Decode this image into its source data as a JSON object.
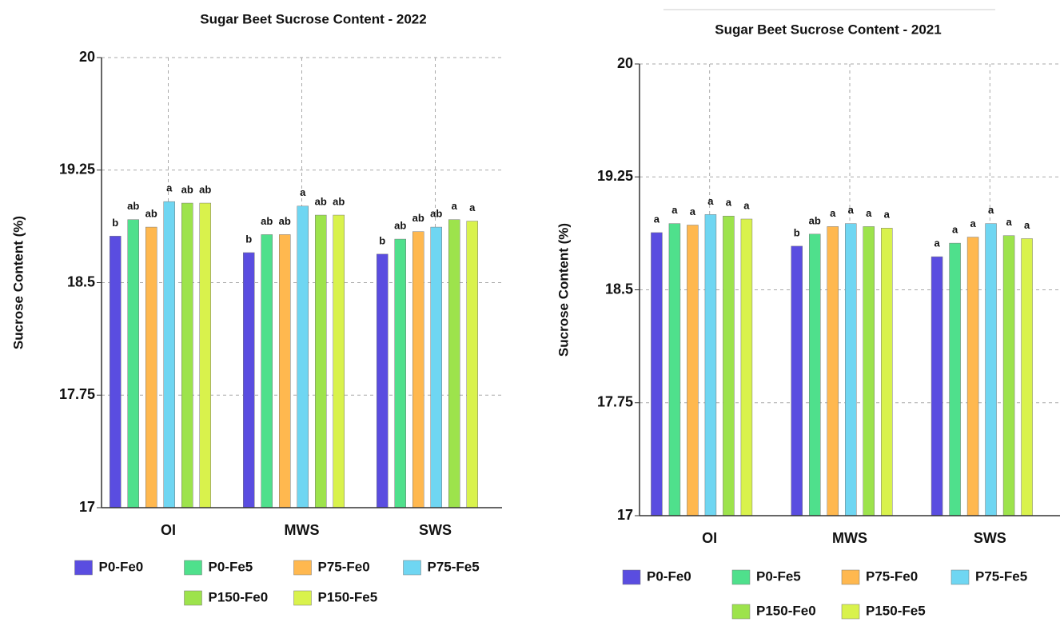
{
  "chart_data": [
    {
      "type": "bar",
      "title": "Sugar Beet Sucrose Content - 2022",
      "y_label": "Sucrose Content (%)",
      "categories": [
        "OI",
        "MWS",
        "SWS"
      ],
      "ylim": [
        17,
        20
      ],
      "yticks": [
        17,
        17.75,
        18.5,
        19.25,
        20
      ],
      "grid": true,
      "legend": "bottom",
      "series": [
        {
          "name": "P0-Fe0",
          "color": "#5a4de0",
          "values": [
            18.81,
            18.7,
            18.69
          ],
          "letters": [
            "b",
            "b",
            "b"
          ]
        },
        {
          "name": "P0-Fe5",
          "color": "#4fe08c",
          "values": [
            18.92,
            18.82,
            18.79
          ],
          "letters": [
            "ab",
            "ab",
            "ab"
          ]
        },
        {
          "name": "P75-Fe0",
          "color": "#ffb84f",
          "values": [
            18.87,
            18.82,
            18.84
          ],
          "letters": [
            "ab",
            "ab",
            "ab"
          ]
        },
        {
          "name": "P75-Fe5",
          "color": "#6fd6f2",
          "values": [
            19.04,
            19.01,
            18.87
          ],
          "letters": [
            "a",
            "a",
            "ab"
          ]
        },
        {
          "name": "P150-Fe0",
          "color": "#9de34c",
          "values": [
            19.03,
            18.95,
            18.92
          ],
          "letters": [
            "ab",
            "ab",
            "a"
          ]
        },
        {
          "name": "P150-Fe5",
          "color": "#d9f24c",
          "values": [
            19.03,
            18.95,
            18.91
          ],
          "letters": [
            "ab",
            "ab",
            "a"
          ]
        }
      ]
    },
    {
      "type": "bar",
      "title": "Sugar Beet Sucrose Content - 2021",
      "y_label": "Sucrose Content (%)",
      "categories": [
        "OI",
        "MWS",
        "SWS"
      ],
      "ylim": [
        17,
        20
      ],
      "yticks": [
        17,
        17.75,
        18.5,
        19.25,
        20
      ],
      "grid": true,
      "legend": "bottom",
      "series": [
        {
          "name": "P0-Fe0",
          "color": "#5a4de0",
          "values": [
            18.88,
            18.79,
            18.72
          ],
          "letters": [
            "a",
            "b",
            "a"
          ]
        },
        {
          "name": "P0-Fe5",
          "color": "#4fe08c",
          "values": [
            18.94,
            18.87,
            18.81
          ],
          "letters": [
            "a",
            "ab",
            "a"
          ]
        },
        {
          "name": "P75-Fe0",
          "color": "#ffb84f",
          "values": [
            18.93,
            18.92,
            18.85
          ],
          "letters": [
            "a",
            "a",
            "a"
          ]
        },
        {
          "name": "P75-Fe5",
          "color": "#6fd6f2",
          "values": [
            19.0,
            18.94,
            18.94
          ],
          "letters": [
            "a",
            "a",
            "a"
          ]
        },
        {
          "name": "P150-Fe0",
          "color": "#9de34c",
          "values": [
            18.99,
            18.92,
            18.86
          ],
          "letters": [
            "a",
            "a",
            "a"
          ]
        },
        {
          "name": "P150-Fe5",
          "color": "#d9f24c",
          "values": [
            18.97,
            18.91,
            18.84
          ],
          "letters": [
            "a",
            "a",
            "a"
          ]
        }
      ]
    }
  ]
}
